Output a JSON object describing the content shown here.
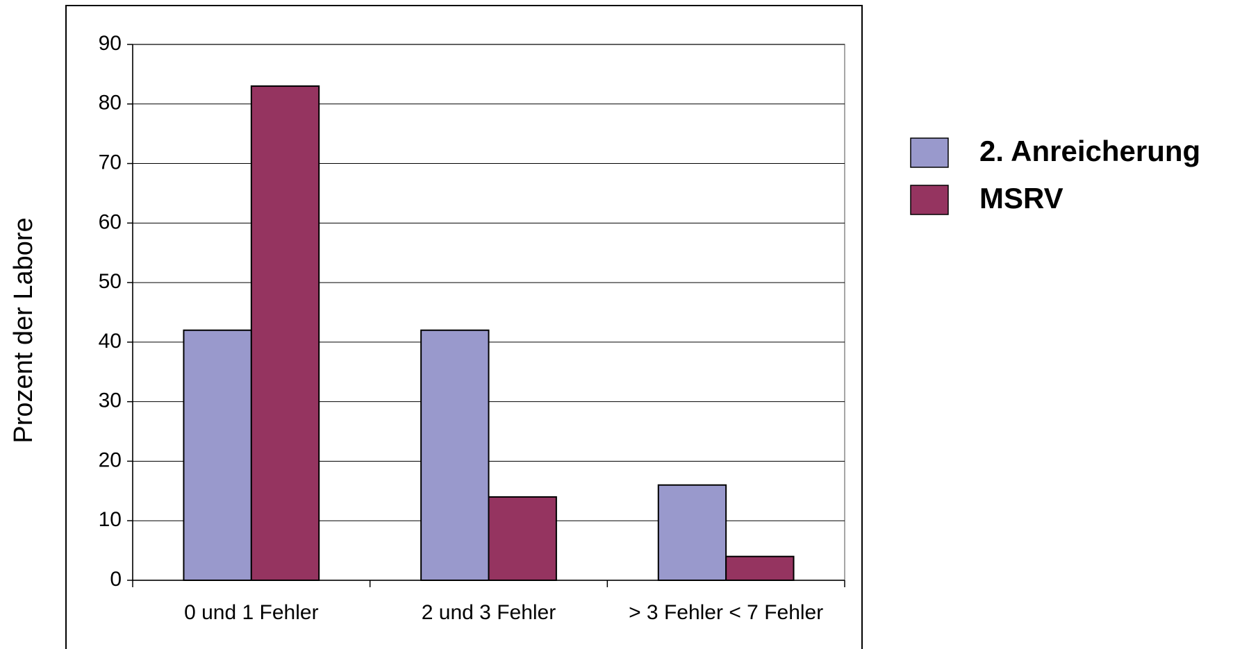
{
  "chart_data": {
    "type": "bar",
    "y_label": "Prozent der Labore",
    "categories": [
      "0 und 1 Fehler",
      "2 und 3 Fehler",
      "> 3 Fehler < 7 Fehler"
    ],
    "series": [
      {
        "name": "2. Anreicherung",
        "color": "#9999cc",
        "values": [
          42,
          42,
          16
        ]
      },
      {
        "name": "MSRV",
        "color": "#953460",
        "values": [
          83,
          14,
          4
        ]
      }
    ],
    "ylim": [
      0,
      90
    ],
    "yticks": [
      0,
      10,
      20,
      30,
      40,
      50,
      60,
      70,
      80,
      90
    ],
    "grid": true,
    "legend": "right"
  }
}
